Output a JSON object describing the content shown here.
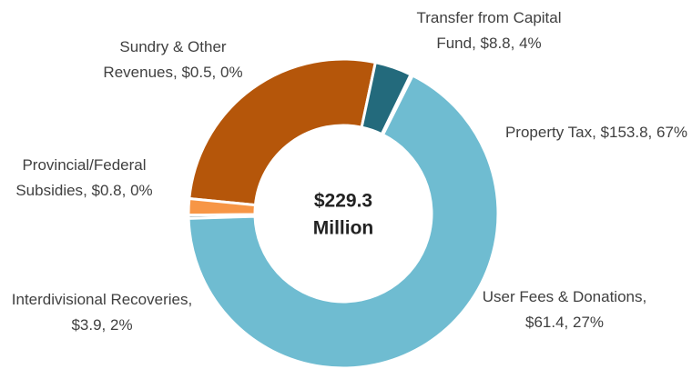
{
  "chart_data": {
    "type": "donut",
    "categories": [
      "Transfer from Capital Fund",
      "Sundry & Other Revenues",
      "Property Tax",
      "Provincial/Federal Subsidies",
      "Interdivisional Recoveries",
      "User Fees & Donations"
    ],
    "values": [
      8.8,
      0.5,
      153.8,
      0.8,
      3.9,
      61.4
    ],
    "value_labels": [
      "$8.8",
      "$0.5",
      "$153.8",
      "$0.8",
      "$3.9",
      "$61.4"
    ],
    "percents": [
      4,
      0,
      67,
      0,
      2,
      27
    ],
    "percent_labels": [
      "4%",
      "0%",
      "67%",
      "0%",
      "2%",
      "27%"
    ],
    "colors": [
      "#236a7c",
      "#4bacc6",
      "#6fbcd1",
      "#8fa8b0",
      "#f79646",
      "#b5560a"
    ],
    "center_text": [
      "$229.3",
      "Million"
    ]
  }
}
